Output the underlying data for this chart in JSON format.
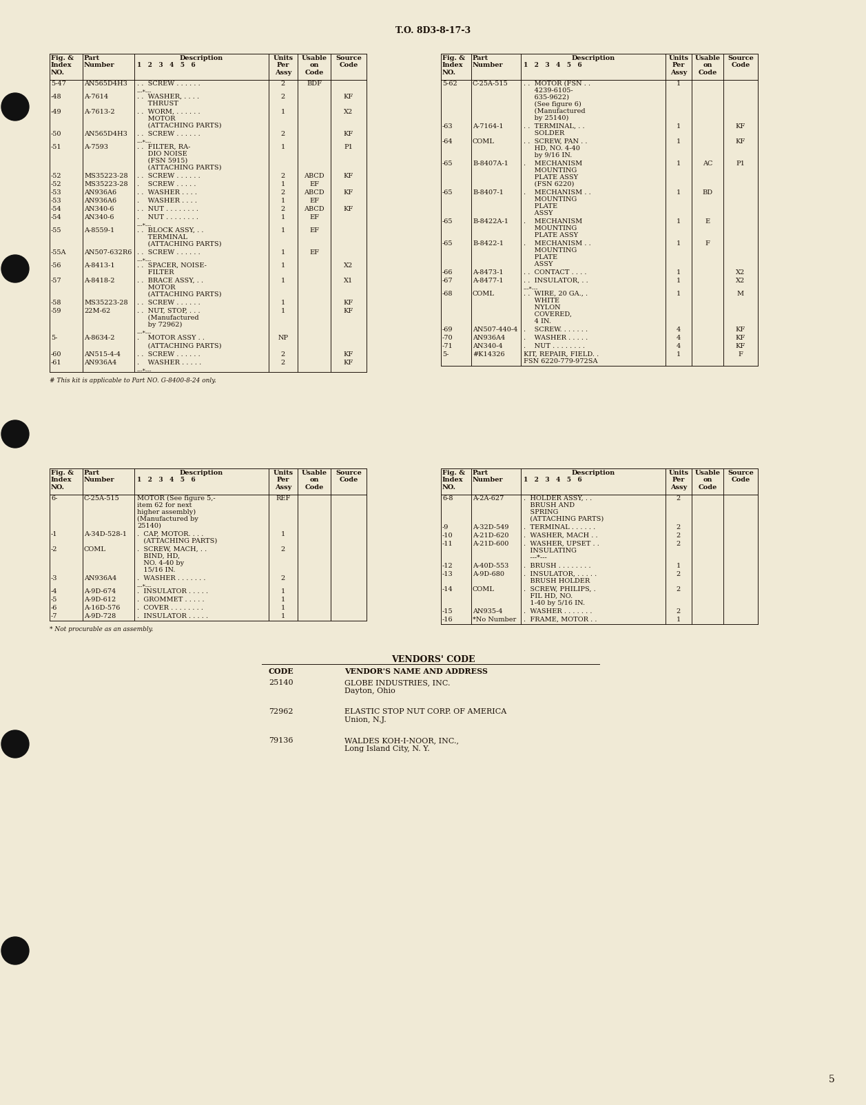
{
  "background_color": "#f0ead6",
  "text_color": "#1a1008",
  "page_header": "T.O. 8D3-8-17-3",
  "page_number": "5",
  "top_left_rows": [
    [
      "5-47",
      "AN565D4H3",
      ". .  SCREW . . . . . .",
      "2",
      "BDF",
      ""
    ],
    [
      "",
      "",
      "---*---",
      "",
      "",
      ""
    ],
    [
      "-48",
      "A-7614",
      ". .  WASHER, . . . .\n     THRUST",
      "2",
      "",
      "KF"
    ],
    [
      "-49",
      "A-7613-2",
      ". .  WORM, . . . . . .\n     MOTOR\n     (ATTACHING PARTS)",
      "1",
      "",
      "X2"
    ],
    [
      "-50",
      "AN565D4H3",
      ". .  SCREW . . . . . .",
      "2",
      "",
      "KF"
    ],
    [
      "",
      "",
      "---*---",
      "",
      "",
      ""
    ],
    [
      "-51",
      "A-7593",
      ". .  FILTER, RA-\n     DIO NOISE\n     (FSN 5915)\n     (ATTACHING PARTS)",
      "1",
      "",
      "P1"
    ],
    [
      "-52",
      "MS35223-28",
      ". .  SCREW . . . . . .",
      "2",
      "ABCD",
      "KF"
    ],
    [
      "-52",
      "MS35223-28",
      ".    SCREW . . . . .",
      "1",
      "EF",
      ""
    ],
    [
      "-53",
      "AN936A6",
      ". .  WASHER . . . .",
      "2",
      "ABCD",
      "KF"
    ],
    [
      "-53",
      "AN936A6",
      ".    WASHER . . . .",
      "1",
      "EF",
      ""
    ],
    [
      "-54",
      "AN340-6",
      ". .  NUT . . . . . . . .",
      "2",
      "ABCD",
      "KF"
    ],
    [
      "-54",
      "AN340-6",
      ".    NUT . . . . . . . .",
      "1",
      "EF",
      ""
    ],
    [
      "",
      "",
      "---*---",
      "",
      "",
      ""
    ],
    [
      "-55",
      "A-8559-1",
      ". .  BLOCK ASSY, . .\n     TERMINAL\n     (ATTACHING PARTS)",
      "1",
      "EF",
      ""
    ],
    [
      "-55A",
      "AN507-632R6",
      ". .  SCREW . . . . . .",
      "1",
      "EF",
      ""
    ],
    [
      "",
      "",
      "---*---",
      "",
      "",
      ""
    ],
    [
      "-56",
      "A-8413-1",
      ". .  SPACER, NOISE-\n     FILTER",
      "1",
      "",
      "X2"
    ],
    [
      "-57",
      "A-8418-2",
      ". .  BRACE ASSY, . .\n     MOTOR\n     (ATTACHING PARTS)",
      "1",
      "",
      "X1"
    ],
    [
      "-58",
      "MS35223-28",
      ". .  SCREW . . . . . .",
      "1",
      "",
      "KF"
    ],
    [
      "-59",
      "22M-62",
      ". .  NUT, STOP, . . .\n     (Manufactured\n     by 72962)",
      "1",
      "",
      "KF"
    ],
    [
      "",
      "",
      "---*---",
      "",
      "",
      ""
    ],
    [
      "5-",
      "A-8634-2",
      ".    MOTOR ASSY . .",
      "NP",
      "",
      ""
    ],
    [
      "",
      "",
      "     (ATTACHING PARTS)",
      "",
      "",
      ""
    ],
    [
      "-60",
      "AN515-4-4",
      ". .  SCREW . . . . . .",
      "2",
      "",
      "KF"
    ],
    [
      "-61",
      "AN936A4",
      ".    WASHER . . . . .",
      "2",
      "",
      "KF"
    ],
    [
      "",
      "",
      "---*---",
      "",
      "",
      ""
    ]
  ],
  "top_right_rows": [
    [
      "5-62",
      "C-25A-515",
      ". .  MOTOR (FSN . .\n     4239-6105-\n     635-9622)\n     (See figure 6)\n     (Manufactured\n     by 25140)",
      "1",
      "",
      ""
    ],
    [
      "-63",
      "A-7164-1",
      ". .  TERMINAL, . .\n     SOLDER",
      "1",
      "",
      "KF"
    ],
    [
      "-64",
      "COML",
      ". .  SCREW, PAN . .\n     HD, NO. 4-40\n     by 9/16 IN.",
      "1",
      "",
      "KF"
    ],
    [
      "-65",
      "B-8407A-1",
      ".    MECHANISM\n     MOUNTING\n     PLATE ASSY\n     (FSN 6220)",
      "1",
      "AC",
      "P1"
    ],
    [
      "-65",
      "B-8407-1",
      ".    MECHANISM . .\n     MOUNTING\n     PLATE\n     ASSY",
      "1",
      "BD",
      ""
    ],
    [
      "-65",
      "B-8422A-1",
      ".    MECHANISM\n     MOUNTING\n     PLATE ASSY",
      "1",
      "E",
      ""
    ],
    [
      "-65",
      "B-8422-1",
      ".    MECHANISM . .\n     MOUNTING\n     PLATE\n     ASSY",
      "1",
      "F",
      ""
    ],
    [
      "-66",
      "A-8473-1",
      ". .  CONTACT . . . .",
      "1",
      "",
      "X2"
    ],
    [
      "-67",
      "A-8477-1",
      ". .  INSULATOR, . .",
      "1",
      "",
      "X2"
    ],
    [
      "",
      "",
      "---*---",
      "",
      "",
      ""
    ],
    [
      "-68",
      "COML",
      ". .  WIRE, 20 GA., .\n     WHITE\n     NYLON\n     COVERED,\n     4 IN.",
      "1",
      "",
      "M"
    ],
    [
      "-69",
      "AN507-440-4",
      ".    SCREW. . . . . . .",
      "4",
      "",
      "KF"
    ],
    [
      "-70",
      "AN936A4",
      ".    WASHER . . . . .",
      "4",
      "",
      "KF"
    ],
    [
      "-71",
      "AN340-4",
      ".    NUT . . . . . . . .",
      "4",
      "",
      "KF"
    ],
    [
      "5-",
      "#K14326",
      "KIT, REPAIR, FIELD. .\nFSN 6220-779-972SA",
      "1",
      "",
      "F"
    ]
  ],
  "top_left_footnote": "# This kit is applicable to Part NO. G-8400-8-24 only.",
  "bottom_left_rows": [
    [
      "6-",
      "C-25A-515",
      "MOTOR (See figure 5,-\nitem 62 for next\nhigher assembly)\n(Manufactured by\n25140)",
      "REF",
      "",
      ""
    ],
    [
      "-1",
      "A-34D-528-1",
      ".  CAP, MOTOR. . . .\n   (ATTACHING PARTS)",
      "1",
      "",
      ""
    ],
    [
      "-2",
      "COML",
      ".  SCREW, MACH, . .\n   BIND, HD,\n   NO. 4-40 by\n   15/16 IN.",
      "2",
      "",
      ""
    ],
    [
      "-3",
      "AN936A4",
      ".  WASHER . . . . . . .",
      "2",
      "",
      ""
    ],
    [
      "",
      "",
      "---*---",
      "",
      "",
      ""
    ],
    [
      "-4",
      "A-9D-674",
      ".  INSULATOR . . . . .",
      "1",
      "",
      ""
    ],
    [
      "-5",
      "A-9D-612",
      ".  GROMMET . . . . .",
      "1",
      "",
      ""
    ],
    [
      "-6",
      "A-16D-576",
      ".  COVER . . . . . . . .",
      "1",
      "",
      ""
    ],
    [
      "-7",
      "A-9D-728",
      ".  INSULATOR . . . . .",
      "1",
      "",
      ""
    ]
  ],
  "bottom_right_rows": [
    [
      "6-8",
      "A-2A-627",
      ".  HOLDER ASSY, . .\n   BRUSH AND\n   SPRING\n   (ATTACHING PARTS)",
      "2",
      "",
      ""
    ],
    [
      "-9",
      "A-32D-549",
      ".  TERMINAL . . . . . .",
      "2",
      "",
      ""
    ],
    [
      "-10",
      "A-21D-620",
      ".  WASHER, MACH . .",
      "2",
      "",
      ""
    ],
    [
      "-11",
      "A-21D-600",
      ".  WASHER, UPSET . .\n   INSULATING\n   ---*---",
      "2",
      "",
      ""
    ],
    [
      "-12",
      "A-40D-553",
      ".  BRUSH . . . . . . . .",
      "1",
      "",
      ""
    ],
    [
      "-13",
      "A-9D-680",
      ".  INSULATOR, . . . . .\n   BRUSH HOLDER",
      "2",
      "",
      ""
    ],
    [
      "-14",
      "COML",
      ".  SCREW, PHILIPS, .\n   FIL HD, NO.\n   1-40 by 5/16 IN.",
      "2",
      "",
      ""
    ],
    [
      "-15",
      "AN935-4",
      ".  WASHER . . . . . . .",
      "2",
      "",
      ""
    ],
    [
      "-16",
      "*No Number",
      ".  FRAME, MOTOR . .",
      "1",
      "",
      ""
    ]
  ],
  "bottom_left_footnote": "* Not procurable as an assembly.",
  "vendors": [
    [
      "25140",
      "GLOBE INDUSTRIES, INC.",
      "Dayton, Ohio"
    ],
    [
      "72962",
      "ELASTIC STOP NUT CORP. OF AMERICA",
      "Union, N.J."
    ],
    [
      "79136",
      "WALDES KOH-I-NOOR, INC.,",
      "Long Island City, N. Y."
    ]
  ]
}
